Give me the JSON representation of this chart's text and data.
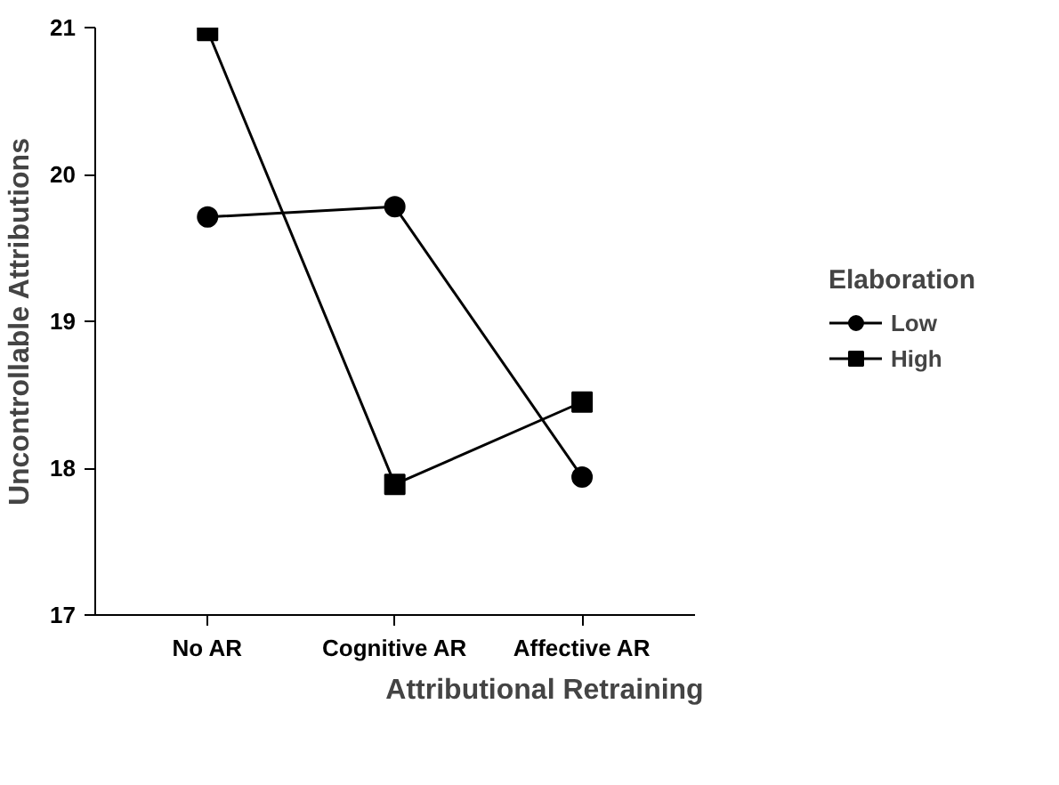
{
  "chart_data": {
    "type": "line",
    "xlabel": "Attributional Retraining",
    "ylabel": "Uncontrollable Attributions",
    "legend_title": "Elaboration",
    "categories": [
      "No AR",
      "Cognitive AR",
      "Affective AR"
    ],
    "series": [
      {
        "name": "Low",
        "color": "#000000",
        "marker": "circle",
        "values": [
          19.71,
          19.78,
          17.94
        ]
      },
      {
        "name": "High",
        "color": "#000000",
        "marker": "square",
        "values": [
          20.98,
          17.89,
          18.45
        ]
      }
    ],
    "ylim": [
      17,
      21
    ],
    "yticks": [
      17,
      18,
      19,
      20,
      21
    ],
    "grid": false,
    "legend": "right",
    "line_style": "solid"
  }
}
